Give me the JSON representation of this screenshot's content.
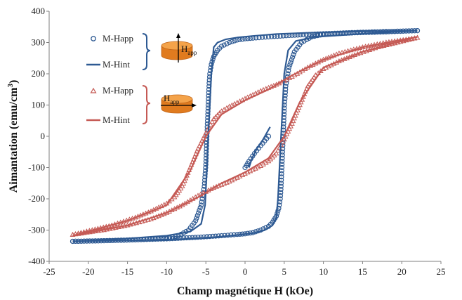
{
  "chart_data": {
    "type": "scatter",
    "xlabel": "Champ magnétique H (kOe)",
    "ylabel": "Aimantation (emu/cm3)",
    "ylabel_main": "Aimantation  (emu/cm",
    "ylabel_sup": "3",
    "ylabel_tail": ")",
    "xlim": [
      -25,
      25
    ],
    "ylim": [
      -400,
      400
    ],
    "x_ticks": [
      "-25",
      "-20",
      "-15",
      "-10",
      "-5",
      "0",
      "5",
      "10",
      "15",
      "20",
      "25"
    ],
    "y_ticks": [
      "400",
      "300",
      "200",
      "100",
      "0",
      "-100",
      "-200",
      "-300",
      "-400"
    ],
    "grid": false,
    "legend_placement": "top-left",
    "happ_label": {
      "main": "H",
      "sub": "app"
    },
    "groups": [
      {
        "orientation": "perpendicular",
        "color": "#2e5a93",
        "series": [
          {
            "name": "M-Happ",
            "marker": "circle",
            "descending": [
              [
                22,
                338
              ],
              [
                18,
                335
              ],
              [
                14,
                332
              ],
              [
                10,
                328
              ],
              [
                6,
                323
              ],
              [
                3,
                318
              ],
              [
                1,
                314
              ],
              [
                0,
                312
              ],
              [
                -1,
                308
              ],
              [
                -2,
                300
              ],
              [
                -3,
                288
              ],
              [
                -3.5,
                275
              ],
              [
                -4,
                255
              ],
              [
                -4.3,
                230
              ],
              [
                -4.5,
                200
              ],
              [
                -4.6,
                160
              ],
              [
                -4.7,
                100
              ],
              [
                -4.8,
                40
              ],
              [
                -4.9,
                -20
              ],
              [
                -5.0,
                -90
              ],
              [
                -5.2,
                -160
              ],
              [
                -5.6,
                -220
              ],
              [
                -6.3,
                -270
              ],
              [
                -7.2,
                -300
              ],
              [
                -8.5,
                -318
              ],
              [
                -10,
                -326
              ],
              [
                -14,
                -331
              ],
              [
                -18,
                -334
              ],
              [
                -22,
                -336
              ]
            ],
            "ascending": [
              [
                -22,
                -336
              ],
              [
                -18,
                -334
              ],
              [
                -14,
                -331
              ],
              [
                -10,
                -328
              ],
              [
                -6,
                -323
              ],
              [
                -3,
                -318
              ],
              [
                -1,
                -314
              ],
              [
                0,
                -312
              ],
              [
                1,
                -308
              ],
              [
                2,
                -300
              ],
              [
                3,
                -288
              ],
              [
                3.5,
                -275
              ],
              [
                4,
                -255
              ],
              [
                4.3,
                -230
              ],
              [
                4.5,
                -200
              ],
              [
                4.6,
                -160
              ],
              [
                4.7,
                -100
              ],
              [
                4.8,
                -40
              ],
              [
                4.9,
                20
              ],
              [
                5.0,
                90
              ],
              [
                5.2,
                160
              ],
              [
                5.6,
                220
              ],
              [
                6.3,
                270
              ],
              [
                7.2,
                300
              ],
              [
                8.5,
                318
              ],
              [
                10,
                326
              ],
              [
                14,
                331
              ],
              [
                18,
                334
              ],
              [
                22,
                338
              ]
            ],
            "initial": [
              [
                0,
                -100
              ],
              [
                0.5,
                -80
              ],
              [
                1.2,
                -55
              ],
              [
                2,
                -30
              ],
              [
                3,
                0
              ]
            ]
          },
          {
            "name": "M-Hint",
            "marker": "line",
            "descending": [
              [
                22,
                338
              ],
              [
                14,
                335
              ],
              [
                8,
                331
              ],
              [
                4,
                327
              ],
              [
                1,
                321
              ],
              [
                -1,
                316
              ],
              [
                -2.5,
                310
              ],
              [
                -3.5,
                300
              ],
              [
                -4,
                285
              ],
              [
                -4.3,
                200
              ],
              [
                -4.5,
                100
              ],
              [
                -4.7,
                0
              ],
              [
                -4.9,
                -120
              ],
              [
                -5.1,
                -220
              ],
              [
                -5.6,
                -280
              ],
              [
                -7,
                -305
              ],
              [
                -10,
                -318
              ],
              [
                -15,
                -327
              ],
              [
                -22,
                -336
              ]
            ],
            "ascending": [
              [
                -22,
                -336
              ],
              [
                -14,
                -333
              ],
              [
                -8,
                -329
              ],
              [
                -4,
                -323
              ],
              [
                -1,
                -316
              ],
              [
                1,
                -310
              ],
              [
                2.5,
                -300
              ],
              [
                3.5,
                -285
              ],
              [
                4,
                -260
              ],
              [
                4.2,
                -200
              ],
              [
                4.4,
                -100
              ],
              [
                4.6,
                0
              ],
              [
                4.8,
                100
              ],
              [
                5.0,
                200
              ],
              [
                5.5,
                275
              ],
              [
                6.5,
                305
              ],
              [
                9,
                318
              ],
              [
                15,
                328
              ],
              [
                22,
                338
              ]
            ],
            "initial": [
              [
                0.5,
                -100
              ],
              [
                0.9,
                -70
              ],
              [
                1.5,
                -40
              ],
              [
                2.3,
                -10
              ],
              [
                3.2,
                30
              ]
            ]
          }
        ]
      },
      {
        "orientation": "in-plane",
        "color": "#c55a55",
        "series": [
          {
            "name": "M-Happ",
            "marker": "triangle",
            "descending": [
              [
                22,
                315
              ],
              [
                18,
                300
              ],
              [
                15,
                285
              ],
              [
                12,
                265
              ],
              [
                10,
                245
              ],
              [
                8,
                220
              ],
              [
                6,
                190
              ],
              [
                4,
                165
              ],
              [
                2,
                145
              ],
              [
                0,
                120
              ],
              [
                -2,
                95
              ],
              [
                -3,
                80
              ],
              [
                -4,
                55
              ],
              [
                -5,
                10
              ],
              [
                -6,
                -40
              ],
              [
                -7,
                -100
              ],
              [
                -8,
                -160
              ],
              [
                -9,
                -195
              ],
              [
                -10,
                -215
              ],
              [
                -12,
                -240
              ],
              [
                -14,
                -260
              ],
              [
                -17,
                -285
              ],
              [
                -22,
                -315
              ]
            ],
            "ascending": [
              [
                -22,
                -315
              ],
              [
                -18,
                -300
              ],
              [
                -15,
                -285
              ],
              [
                -12,
                -265
              ],
              [
                -10,
                -245
              ],
              [
                -8,
                -220
              ],
              [
                -6,
                -190
              ],
              [
                -4,
                -165
              ],
              [
                -2,
                -145
              ],
              [
                0,
                -120
              ],
              [
                2,
                -95
              ],
              [
                3,
                -80
              ],
              [
                4,
                -55
              ],
              [
                5,
                -10
              ],
              [
                6,
                40
              ],
              [
                7,
                100
              ],
              [
                8,
                160
              ],
              [
                9,
                195
              ],
              [
                10,
                215
              ],
              [
                12,
                240
              ],
              [
                14,
                260
              ],
              [
                17,
                285
              ],
              [
                22,
                315
              ]
            ]
          },
          {
            "name": "M-Hint",
            "marker": "line",
            "descending": [
              [
                22,
                318
              ],
              [
                15,
                285
              ],
              [
                10,
                245
              ],
              [
                6,
                195
              ],
              [
                3,
                150
              ],
              [
                0,
                115
              ],
              [
                -3,
                70
              ],
              [
                -5,
                0
              ],
              [
                -7,
                -110
              ],
              [
                -10,
                -220
              ],
              [
                -15,
                -270
              ],
              [
                -22,
                -318
              ]
            ],
            "ascending": [
              [
                -22,
                -318
              ],
              [
                -15,
                -285
              ],
              [
                -10,
                -245
              ],
              [
                -6,
                -195
              ],
              [
                -3,
                -150
              ],
              [
                0,
                -115
              ],
              [
                3,
                -70
              ],
              [
                5,
                0
              ],
              [
                7,
                110
              ],
              [
                10,
                220
              ],
              [
                15,
                270
              ],
              [
                22,
                318
              ]
            ]
          }
        ]
      }
    ]
  }
}
